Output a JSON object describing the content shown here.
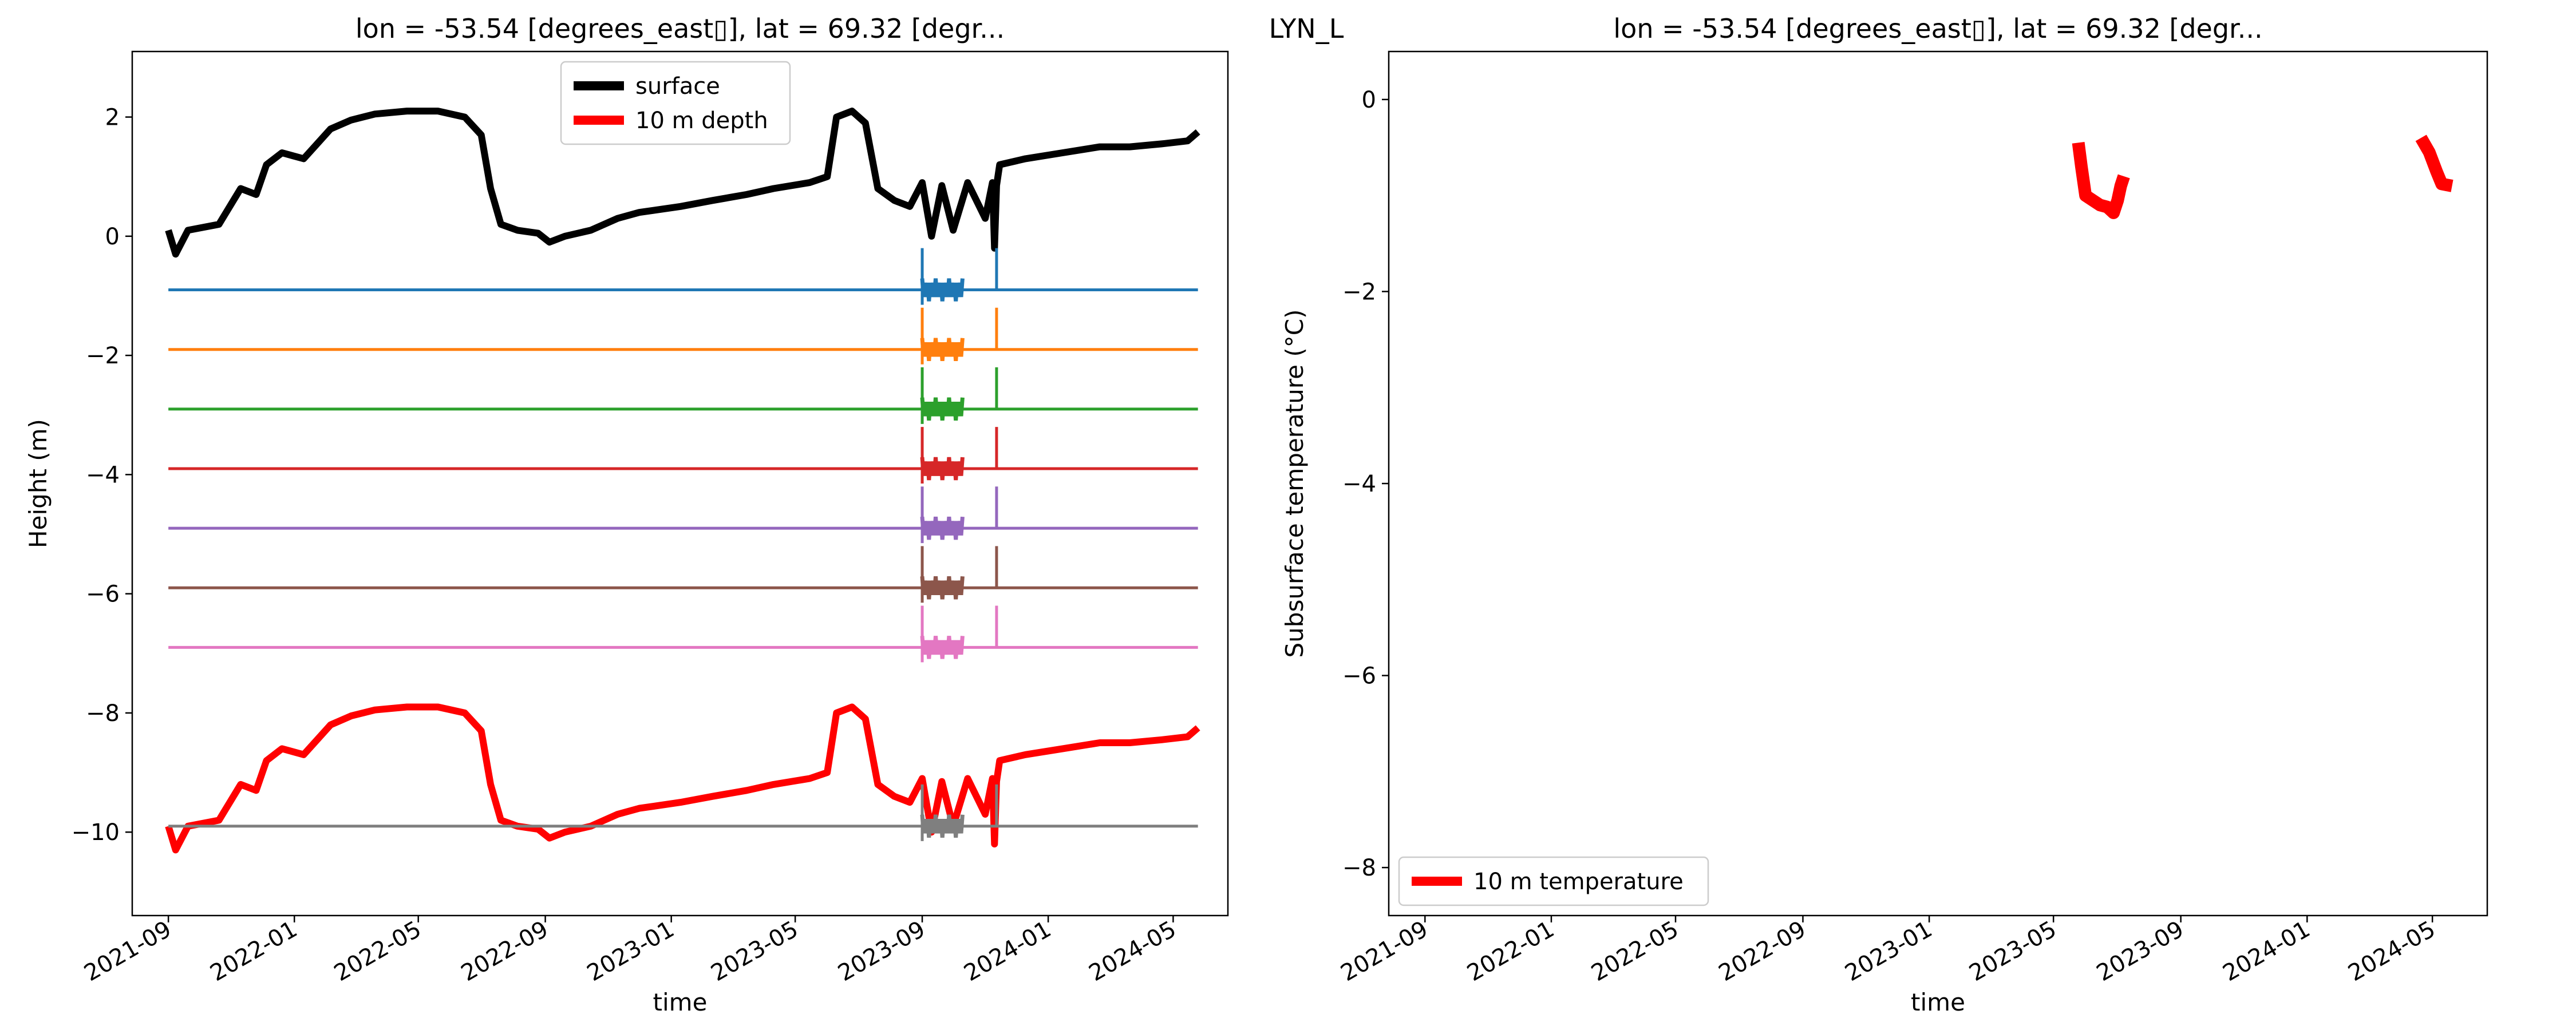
{
  "figure": {
    "suptitle": "LYN_L"
  },
  "chart_data": [
    {
      "type": "line",
      "title": "lon = -53.54 [degrees_east▯], lat = 69.32 [degr...",
      "xlabel": "time",
      "ylabel": "Height (m)",
      "xlim": [
        "2021-07-28",
        "2024-06-23"
      ],
      "ylim": [
        -11.4,
        3.1
      ],
      "xticks": [
        "2021-09",
        "2022-01",
        "2022-05",
        "2022-09",
        "2023-01",
        "2023-05",
        "2023-09",
        "2024-01",
        "2024-05"
      ],
      "yticks": [
        2,
        0,
        -2,
        -4,
        -6,
        -8,
        -10
      ],
      "legend": "upper-center",
      "legend_entries": [
        {
          "label": "surface",
          "color": "#000000"
        },
        {
          "label": "10 m depth",
          "color": "#ff0000"
        }
      ],
      "series": [
        {
          "name": "surface",
          "color": "#000000",
          "width": 12,
          "x": [
            "2021-09-01",
            "2021-09-08",
            "2021-09-20",
            "2021-10-20",
            "2021-11-10",
            "2021-11-25",
            "2021-12-05",
            "2021-12-20",
            "2022-01-10",
            "2022-02-05",
            "2022-02-25",
            "2022-03-20",
            "2022-04-20",
            "2022-05-20",
            "2022-06-15",
            "2022-07-01",
            "2022-07-10",
            "2022-07-20",
            "2022-08-05",
            "2022-08-25",
            "2022-09-05",
            "2022-09-20",
            "2022-10-15",
            "2022-11-10",
            "2022-12-01",
            "2023-01-10",
            "2023-02-10",
            "2023-03-15",
            "2023-04-10",
            "2023-05-15",
            "2023-06-01",
            "2023-06-10",
            "2023-06-25",
            "2023-07-08",
            "2023-07-20",
            "2023-08-05",
            "2023-08-20",
            "2023-09-01",
            "2023-09-10",
            "2023-09-20",
            "2023-10-01",
            "2023-10-15",
            "2023-11-01",
            "2023-11-08",
            "2023-11-10",
            "2023-11-12",
            "2023-11-15",
            "2023-12-10",
            "2024-01-15",
            "2024-02-20",
            "2024-03-20",
            "2024-04-20",
            "2024-05-15",
            "2024-05-25"
          ],
          "y": [
            0.1,
            -0.3,
            0.1,
            0.2,
            0.8,
            0.7,
            1.2,
            1.4,
            1.3,
            1.8,
            1.95,
            2.05,
            2.1,
            2.1,
            2.0,
            1.7,
            0.8,
            0.2,
            0.1,
            0.05,
            -0.1,
            0.0,
            0.1,
            0.3,
            0.4,
            0.5,
            0.6,
            0.7,
            0.8,
            0.9,
            1.0,
            2.0,
            2.1,
            1.9,
            0.8,
            0.6,
            0.5,
            0.9,
            0.0,
            0.85,
            0.1,
            0.9,
            0.3,
            0.9,
            -0.2,
            0.85,
            1.2,
            1.3,
            1.4,
            1.5,
            1.5,
            1.55,
            1.6,
            1.75
          ]
        },
        {
          "name": "10 m depth",
          "color": "#ff0000",
          "width": 12,
          "x": [
            "2021-09-01",
            "2021-09-08",
            "2021-09-20",
            "2021-10-20",
            "2021-11-10",
            "2021-11-25",
            "2021-12-05",
            "2021-12-20",
            "2022-01-10",
            "2022-02-05",
            "2022-02-25",
            "2022-03-20",
            "2022-04-20",
            "2022-05-20",
            "2022-06-15",
            "2022-07-01",
            "2022-07-10",
            "2022-07-20",
            "2022-08-05",
            "2022-08-25",
            "2022-09-05",
            "2022-09-20",
            "2022-10-15",
            "2022-11-10",
            "2022-12-01",
            "2023-01-10",
            "2023-02-10",
            "2023-03-15",
            "2023-04-10",
            "2023-05-15",
            "2023-06-01",
            "2023-06-10",
            "2023-06-25",
            "2023-07-08",
            "2023-07-20",
            "2023-08-05",
            "2023-08-20",
            "2023-09-01",
            "2023-09-10",
            "2023-09-20",
            "2023-10-01",
            "2023-10-15",
            "2023-11-01",
            "2023-11-08",
            "2023-11-10",
            "2023-11-12",
            "2023-11-15",
            "2023-12-10",
            "2024-01-15",
            "2024-02-20",
            "2024-03-20",
            "2024-04-20",
            "2024-05-15",
            "2024-05-25"
          ],
          "y": [
            -9.9,
            -10.3,
            -9.9,
            -9.8,
            -9.2,
            -9.3,
            -8.8,
            -8.6,
            -8.7,
            -8.2,
            -8.05,
            -7.95,
            -7.9,
            -7.9,
            -8.0,
            -8.3,
            -9.2,
            -9.8,
            -9.9,
            -9.95,
            -10.1,
            -10.0,
            -9.9,
            -9.7,
            -9.6,
            -9.5,
            -9.4,
            -9.3,
            -9.2,
            -9.1,
            -9.0,
            -8.0,
            -7.9,
            -8.1,
            -9.2,
            -9.4,
            -9.5,
            -9.1,
            -10.0,
            -9.15,
            -9.9,
            -9.1,
            -9.7,
            -9.1,
            -10.2,
            -9.15,
            -8.8,
            -8.7,
            -8.6,
            -8.5,
            -8.5,
            -8.45,
            -8.4,
            -8.25
          ]
        },
        {
          "name": "",
          "color": "#1f77b4",
          "width": 5,
          "y_level": -0.9,
          "x_range": [
            "2021-09-01",
            "2024-05-25"
          ],
          "spike_top": -0.2
        },
        {
          "name": "",
          "color": "#ff7f0e",
          "width": 5,
          "y_level": -1.9,
          "x_range": [
            "2021-09-01",
            "2024-05-25"
          ],
          "spike_top": -1.2
        },
        {
          "name": "",
          "color": "#2ca02c",
          "width": 5,
          "y_level": -2.9,
          "x_range": [
            "2021-09-01",
            "2024-05-25"
          ],
          "spike_top": -2.2
        },
        {
          "name": "",
          "color": "#d62728",
          "width": 5,
          "y_level": -3.9,
          "x_range": [
            "2021-09-01",
            "2024-05-25"
          ],
          "spike_top": -3.2
        },
        {
          "name": "",
          "color": "#9467bd",
          "width": 5,
          "y_level": -4.9,
          "x_range": [
            "2021-09-01",
            "2024-05-25"
          ],
          "spike_top": -4.2
        },
        {
          "name": "",
          "color": "#8c564b",
          "width": 5,
          "y_level": -5.9,
          "x_range": [
            "2021-09-01",
            "2024-05-25"
          ],
          "spike_top": -5.2
        },
        {
          "name": "",
          "color": "#e377c2",
          "width": 5,
          "y_level": -6.9,
          "x_range": [
            "2021-09-01",
            "2024-05-25"
          ],
          "spike_top": -6.2
        },
        {
          "name": "",
          "color": "#7f7f7f",
          "width": 5,
          "y_level": -9.9,
          "x_range": [
            "2021-09-01",
            "2024-05-25"
          ],
          "spike_top": -9.2
        }
      ]
    },
    {
      "type": "line",
      "title": "lon = -53.54 [degrees_east▯], lat = 69.32 [degr...",
      "xlabel": "time",
      "ylabel": "Subsurface temperature (°C)",
      "xlim": [
        "2021-07-28",
        "2024-06-23"
      ],
      "ylim": [
        -8.5,
        0.5
      ],
      "xticks": [
        "2021-09",
        "2022-01",
        "2022-05",
        "2022-09",
        "2023-01",
        "2023-05",
        "2023-09",
        "2024-01",
        "2024-05"
      ],
      "yticks": [
        0,
        -2,
        -4,
        -6,
        -8
      ],
      "legend": "lower-left",
      "legend_entries": [
        {
          "label": "10 m temperature",
          "color": "#ff0000"
        }
      ],
      "series": [
        {
          "name": "10 m temperature",
          "color": "#ff0000",
          "width": 22,
          "segments": [
            {
              "x": [
                "2023-05-25",
                "2023-05-28",
                "2023-06-01",
                "2023-06-08",
                "2023-06-15",
                "2023-06-22",
                "2023-06-28",
                "2023-07-02",
                "2023-07-05",
                "2023-07-08"
              ],
              "y": [
                -0.45,
                -0.7,
                -1.0,
                -1.05,
                -1.1,
                -1.12,
                -1.18,
                -1.05,
                -0.9,
                -0.8
              ]
            },
            {
              "x": [
                "2024-04-20",
                "2024-04-28",
                "2024-05-05",
                "2024-05-10",
                "2024-05-20"
              ],
              "y": [
                -0.4,
                -0.55,
                -0.75,
                -0.88,
                -0.9
              ]
            }
          ]
        }
      ]
    }
  ]
}
